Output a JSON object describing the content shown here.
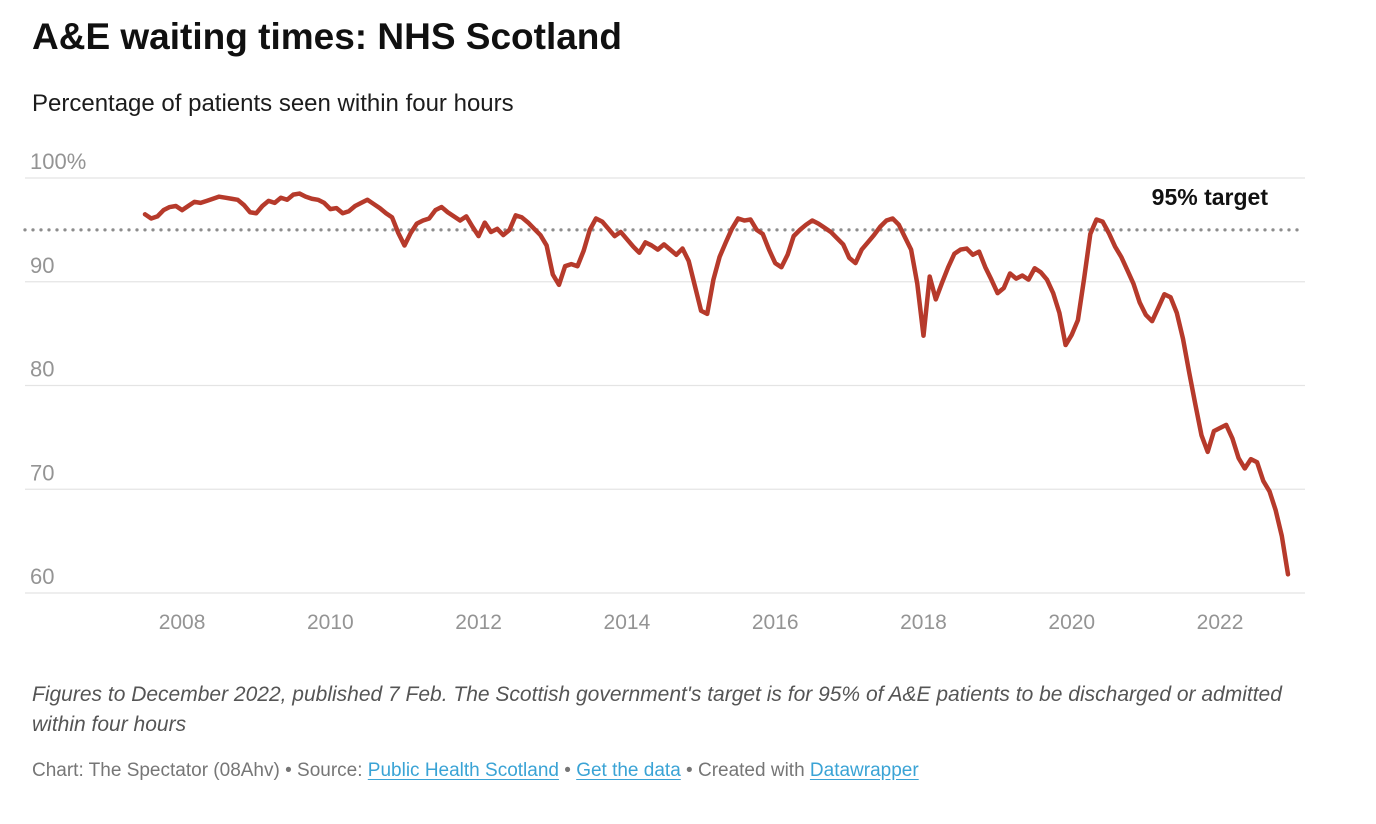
{
  "header": {
    "title": "A&E waiting times: NHS Scotland",
    "subtitle": "Percentage of patients seen within four hours"
  },
  "footer": {
    "note": "Figures to December 2022, published 7 Feb. The Scottish government's target is for 95% of A&E patients to be discharged or admitted within four hours",
    "credit_prefix": "Chart: The Spectator (08Ahv) • Source: ",
    "source_link": "Public Health Scotland",
    "sep1": " • ",
    "data_link": "Get the data",
    "sep2": " • Created with ",
    "tool_link": "Datawrapper"
  },
  "colors": {
    "line": "#b63a2b",
    "target_dotted": "#8d8d8d",
    "gridline": "#e4e4e4",
    "tick_label": "#949494",
    "link": "#3aa3d5",
    "title_text": "#101010",
    "note_text": "#555555"
  },
  "chart_data": {
    "type": "line",
    "title": "A&E waiting times: NHS Scotland",
    "subtitle": "Percentage of patients seen within four hours",
    "unit": "%",
    "frequency": "monthly",
    "x_start": "2007-07",
    "x_end": "2022-12",
    "grid": "horizontal",
    "legend": "none",
    "x_axis": {
      "ticks": [
        2008,
        2010,
        2012,
        2014,
        2016,
        2018,
        2020,
        2022
      ]
    },
    "y_axis": {
      "tick_values": [
        100,
        90,
        80,
        70,
        60
      ],
      "tick_labels": [
        "100%",
        "90",
        "80",
        "70",
        "60"
      ],
      "range": [
        60,
        100
      ]
    },
    "target_line": {
      "value": 95,
      "label": "95% target",
      "style": "dotted"
    },
    "series": [
      {
        "name": "Percentage of patients seen within four hours",
        "color": "#b63a2b",
        "values": [
          96.5,
          96.1,
          96.3,
          96.9,
          97.2,
          97.3,
          96.9,
          97.3,
          97.7,
          97.6,
          97.8,
          98.0,
          98.2,
          98.1,
          98.0,
          97.9,
          97.4,
          96.7,
          96.6,
          97.3,
          97.8,
          97.6,
          98.1,
          97.9,
          98.4,
          98.5,
          98.2,
          98.0,
          97.9,
          97.6,
          97.0,
          97.1,
          96.6,
          96.8,
          97.3,
          97.6,
          97.9,
          97.5,
          97.1,
          96.6,
          96.2,
          94.7,
          93.5,
          94.7,
          95.6,
          95.9,
          96.1,
          96.9,
          97.2,
          96.7,
          96.3,
          95.9,
          96.3,
          95.3,
          94.4,
          95.7,
          94.8,
          95.1,
          94.5,
          95.0,
          96.4,
          96.2,
          95.7,
          95.1,
          94.5,
          93.5,
          90.7,
          89.7,
          91.5,
          91.7,
          91.5,
          93.0,
          95.0,
          96.1,
          95.8,
          95.1,
          94.4,
          94.8,
          94.1,
          93.4,
          92.8,
          93.8,
          93.5,
          93.1,
          93.6,
          93.1,
          92.6,
          93.2,
          92.0,
          89.6,
          87.2,
          86.9,
          90.2,
          92.4,
          93.8,
          95.1,
          96.1,
          95.9,
          96.0,
          95.0,
          94.6,
          93.1,
          91.8,
          91.4,
          92.6,
          94.4,
          95.0,
          95.5,
          95.9,
          95.6,
          95.2,
          94.8,
          94.2,
          93.6,
          92.3,
          91.8,
          93.1,
          93.8,
          94.5,
          95.3,
          95.9,
          96.1,
          95.5,
          94.3,
          93.1,
          89.8,
          84.8,
          90.5,
          88.3,
          89.9,
          91.4,
          92.7,
          93.1,
          93.2,
          92.6,
          92.9,
          91.4,
          90.2,
          88.9,
          89.4,
          90.8,
          90.3,
          90.6,
          90.2,
          91.3,
          90.9,
          90.2,
          88.9,
          87.0,
          83.9,
          84.9,
          86.3,
          90.3,
          94.6,
          96.0,
          95.8,
          94.7,
          93.4,
          92.4,
          91.1,
          89.8,
          88.0,
          86.8,
          86.2,
          87.5,
          88.8,
          88.5,
          87.0,
          84.5,
          81.3,
          78.2,
          75.2,
          73.6,
          75.6,
          75.9,
          76.2,
          74.9,
          73.0,
          72.0,
          72.9,
          72.6,
          70.8,
          69.8,
          68.0,
          65.5,
          61.8
        ]
      }
    ]
  }
}
